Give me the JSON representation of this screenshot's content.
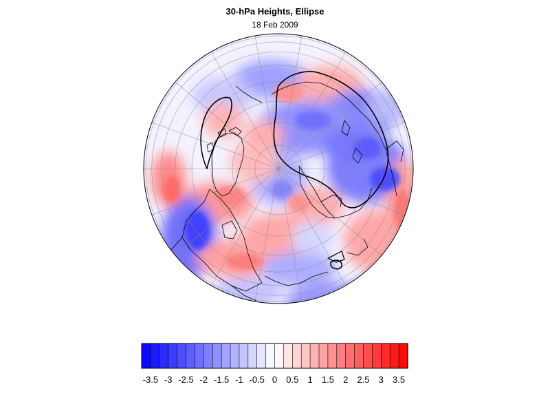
{
  "title": "30-hPa Heights, Ellipse",
  "subtitle": "18 Feb 2009",
  "map": {
    "projection": "polar-orthographic",
    "hemisphere": "north",
    "field": "30-hPa height anomaly",
    "features": [
      "coastlines",
      "lat-lon-graticule",
      "ellipse-contour"
    ]
  },
  "colorbar": {
    "orientation": "horizontal",
    "min": -3.75,
    "max": 3.75,
    "step": 0.25,
    "tick_labels": [
      "-3.5",
      "-3",
      "-2.5",
      "-2",
      "-1.5",
      "-1",
      "-0.5",
      "0",
      "0.5",
      "1",
      "1.5",
      "2",
      "2.5",
      "3",
      "3.5"
    ],
    "negative_color": "#0000ff",
    "neutral_color": "#ffffff",
    "positive_color": "#ff0000"
  }
}
